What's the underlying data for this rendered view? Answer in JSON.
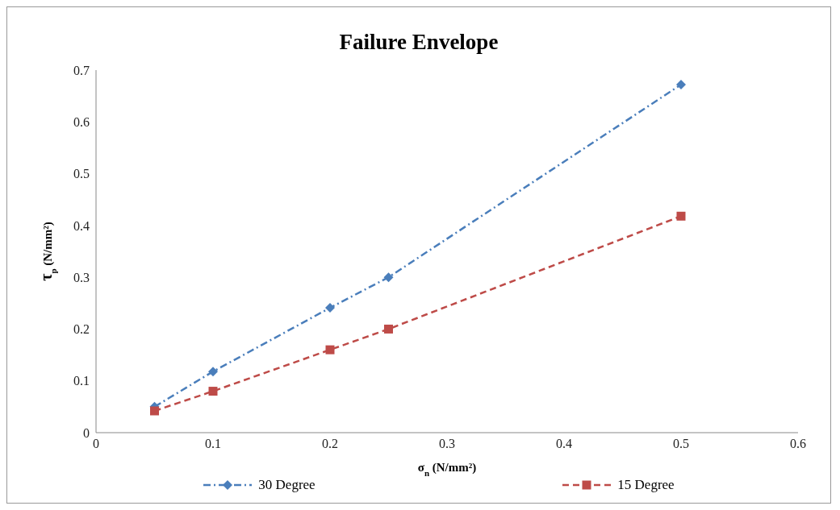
{
  "chart_data": {
    "type": "line",
    "title": "Failure Envelope",
    "xlabel": "σ$_{n}$ (N/mm²)",
    "ylabel": "τ$_{p}$ (N/mm²)",
    "x": [
      0.05,
      0.1,
      0.2,
      0.25,
      0.5
    ],
    "series": [
      {
        "name": "30 Degree",
        "color": "#4a7ebb",
        "values": [
          0.05,
          0.118,
          0.241,
          0.3,
          0.672
        ],
        "marker": "diamond",
        "line_style": "dashdot"
      },
      {
        "name": "15 Degree",
        "color": "#be4b48",
        "values": [
          0.042,
          0.08,
          0.16,
          0.2,
          0.418
        ],
        "marker": "square",
        "line_style": "dashed"
      }
    ],
    "xlim": [
      0,
      0.6
    ],
    "xticks": [
      0,
      0.1,
      0.2,
      0.3,
      0.4,
      0.5,
      0.6
    ],
    "ylim": [
      0,
      0.7
    ],
    "yticks": [
      0,
      0.1,
      0.2,
      0.3,
      0.4,
      0.5,
      0.6,
      0.7
    ],
    "grid": false,
    "legend": "bottom"
  }
}
